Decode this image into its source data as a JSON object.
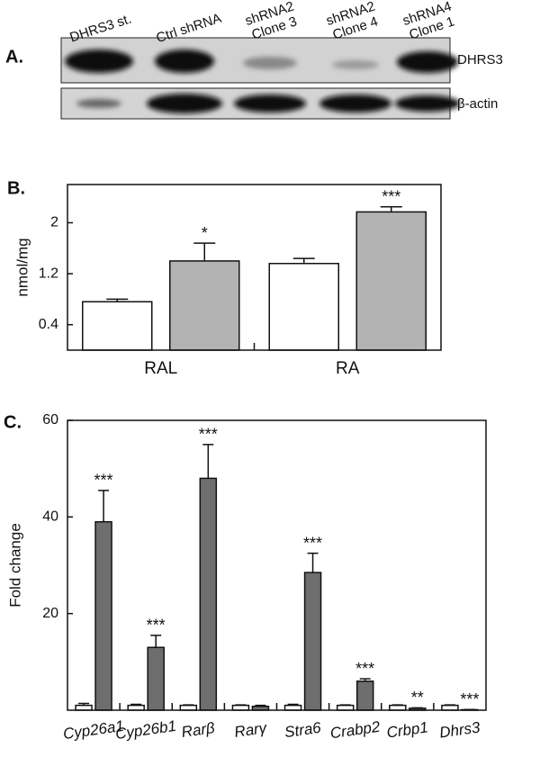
{
  "blot": {
    "panel_label": "A.",
    "lanes": [
      [
        "DHRS3 st."
      ],
      [
        "Ctrl shRNA"
      ],
      [
        "shRNA2",
        "Clone 3"
      ],
      [
        "shRNA2",
        "Clone 4"
      ],
      [
        "shRNA4",
        "Clone 1"
      ]
    ],
    "rows": [
      "DHRS3",
      "β-actin"
    ]
  },
  "chart_data": [
    {
      "type": "bar",
      "panel_label": "B.",
      "y_label": "nmol/mg",
      "categories": [
        "RAL",
        "RA"
      ],
      "ylim": [
        0,
        2.6
      ],
      "yticks": [
        0.4,
        1.2,
        2.0
      ],
      "series": [
        {
          "color": "#ffffff",
          "values": [
            0.76,
            1.36
          ],
          "errors": [
            0.04,
            0.08
          ]
        },
        {
          "color": "#b3b3b3",
          "values": [
            1.4,
            2.17
          ],
          "errors": [
            0.28,
            0.08
          ],
          "annotations": [
            "*",
            "***"
          ]
        }
      ]
    },
    {
      "type": "bar",
      "panel_label": "C.",
      "y_label": "Fold change",
      "categories": [
        "Cyp26a1",
        "Cyp26b1",
        "Rarβ",
        "Rarγ",
        "Stra6",
        "Crabp2",
        "Crbp1",
        "Dhrs3"
      ],
      "ylim": [
        0,
        60
      ],
      "yticks": [
        20,
        40,
        60
      ],
      "series": [
        {
          "color": "#ffffff",
          "values": [
            1,
            1,
            1,
            1,
            1,
            1,
            1,
            1
          ],
          "errors": [
            0.4,
            0.2,
            0.1,
            0.1,
            0.2,
            0.1,
            0.1,
            0.1
          ]
        },
        {
          "color": "#6e6e6e",
          "values": [
            39,
            13,
            48,
            0.8,
            28.5,
            6,
            0.4,
            0.1
          ],
          "errors": [
            6.5,
            2.5,
            7,
            0.2,
            4,
            0.5,
            0.1,
            0.05
          ],
          "annotations": [
            "***",
            "***",
            "***",
            null,
            "***",
            "***",
            "**",
            "***"
          ]
        }
      ]
    }
  ]
}
